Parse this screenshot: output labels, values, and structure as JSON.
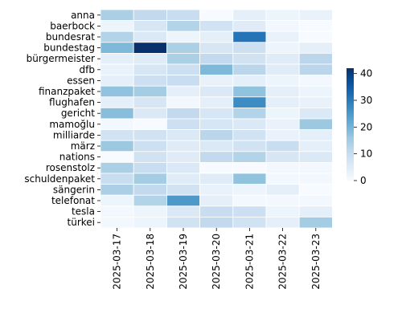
{
  "chart_data": {
    "type": "heatmap",
    "title": "",
    "xlabel": "",
    "ylabel": "",
    "x": [
      "2025-03-17",
      "2025-03-18",
      "2025-03-19",
      "2025-03-20",
      "2025-03-21",
      "2025-03-22",
      "2025-03-23"
    ],
    "y": [
      "anna",
      "baerbock",
      "bundesrat",
      "bundestag",
      "bürgermeister",
      "dfb",
      "essen",
      "finanzpaket",
      "flughafen",
      "gericht",
      "mamoğlu",
      "milliarde",
      "märz",
      "nations",
      "rosenstolz",
      "schuldenpaket",
      "sängerin",
      "telefonat",
      "tesla",
      "türkei"
    ],
    "values": [
      [
        14,
        11,
        10,
        0,
        4,
        2,
        3
      ],
      [
        2,
        7,
        13,
        8,
        5,
        1,
        0
      ],
      [
        13,
        6,
        2,
        4,
        31,
        3,
        0
      ],
      [
        19,
        42,
        14,
        7,
        9,
        2,
        4
      ],
      [
        4,
        5,
        14,
        11,
        8,
        5,
        12
      ],
      [
        3,
        7,
        9,
        19,
        12,
        5,
        12
      ],
      [
        4,
        9,
        10,
        3,
        4,
        2,
        1
      ],
      [
        17,
        15,
        4,
        6,
        17,
        4,
        2
      ],
      [
        4,
        7,
        1,
        4,
        27,
        4,
        3
      ],
      [
        18,
        6,
        11,
        7,
        13,
        2,
        6
      ],
      [
        1,
        0,
        9,
        7,
        6,
        3,
        16
      ],
      [
        8,
        8,
        6,
        12,
        8,
        3,
        4
      ],
      [
        16,
        9,
        5,
        6,
        8,
        10,
        4
      ],
      [
        0,
        8,
        5,
        11,
        13,
        7,
        6
      ],
      [
        14,
        10,
        6,
        0,
        0,
        1,
        1
      ],
      [
        10,
        15,
        5,
        5,
        17,
        1,
        1
      ],
      [
        14,
        11,
        8,
        3,
        2,
        4,
        0
      ],
      [
        2,
        13,
        25,
        4,
        1,
        1,
        1
      ],
      [
        1,
        2,
        6,
        10,
        9,
        2,
        4
      ],
      [
        1,
        2,
        8,
        11,
        8,
        4,
        15
      ]
    ],
    "colorbar": {
      "min": 0,
      "max": 42,
      "ticks": [
        0,
        10,
        20,
        30,
        40
      ]
    },
    "colormap": "Blues",
    "cell_border_color": "#ffffff"
  }
}
